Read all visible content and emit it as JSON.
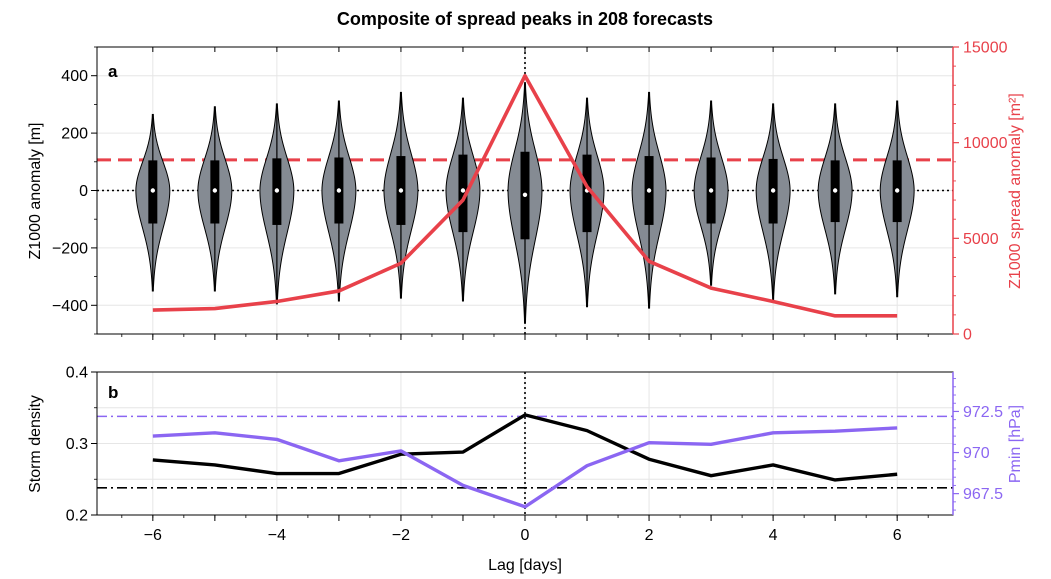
{
  "chart_data": [
    {
      "type": "violin+line",
      "panel": "a",
      "title": "Composite of spread peaks in 208 forecasts",
      "xlabel": "Lag [days]",
      "ylabel": "Z1000 anomaly [m]",
      "ylabel_right": "Z1000 spread anomaly [m²]",
      "xlim": [
        -6.9,
        6.9
      ],
      "ylim": [
        -500,
        500
      ],
      "ylim_right": [
        0,
        15000
      ],
      "xticks": [
        -6,
        -4,
        -2,
        0,
        2,
        4,
        6
      ],
      "xtick_labels": [
        "−6",
        "−4",
        "−2",
        "0",
        "2",
        "4",
        "6"
      ],
      "yticks": [
        -400,
        -200,
        0,
        200,
        400
      ],
      "ytick_labels": [
        "−400",
        "−200",
        "0",
        "200",
        "400"
      ],
      "yticks_right": [
        0,
        5000,
        10000,
        15000
      ],
      "ytick_labels_right": [
        "0",
        "5000",
        "10000",
        "15000"
      ],
      "grid": true,
      "violins": {
        "x": [
          -6,
          -5,
          -4,
          -3,
          -2,
          -1,
          0,
          1,
          2,
          3,
          4,
          5,
          6
        ],
        "max": [
          265,
          292,
          302,
          312,
          342,
          322,
          372,
          322,
          342,
          312,
          302,
          302,
          312
        ],
        "min": [
          -350,
          -350,
          -395,
          -385,
          -375,
          -385,
          -460,
          -405,
          -410,
          -330,
          -380,
          -360,
          -370
        ],
        "q75": [
          105,
          105,
          112,
          115,
          120,
          125,
          135,
          125,
          120,
          115,
          110,
          105,
          105
        ],
        "q25": [
          -115,
          -115,
          -120,
          -115,
          -120,
          -145,
          -170,
          -145,
          -120,
          -115,
          -115,
          -110,
          -110
        ],
        "median": [
          0,
          0,
          0,
          0,
          0,
          0,
          -15,
          0,
          0,
          0,
          0,
          0,
          0
        ],
        "color": "#858b93"
      },
      "series": [
        {
          "axis": "right",
          "x": [
            -6,
            -5,
            -4,
            -3,
            -2,
            -1,
            0,
            1,
            2,
            3,
            4,
            5,
            6
          ],
          "values": [
            1250,
            1330,
            1700,
            2250,
            3700,
            7000,
            13500,
            7700,
            3800,
            2400,
            1700,
            950,
            950
          ],
          "color": "#e8414a"
        }
      ],
      "hlines": [
        {
          "axis": "right",
          "value": 9100,
          "style": "dashed",
          "color": "#e8414a"
        },
        {
          "axis": "left",
          "value": 0,
          "style": "dotted",
          "color": "#000000"
        }
      ],
      "vlines": [
        {
          "value": 0,
          "style": "dotted",
          "color": "#000000"
        }
      ]
    },
    {
      "type": "line",
      "panel": "b",
      "xlabel": "Lag [days]",
      "ylabel": "Storm density",
      "ylabel_right": "Pmin [hPa]",
      "xlim": [
        -6.9,
        6.9
      ],
      "ylim": [
        0.2,
        0.4
      ],
      "ylim_right": [
        966.2,
        974.9
      ],
      "yticks": [
        0.2,
        0.3,
        0.4
      ],
      "ytick_labels": [
        "0.2",
        "0.3",
        "0.4"
      ],
      "yticks_right": [
        967.5,
        970,
        972.5
      ],
      "ytick_labels_right": [
        "967.5",
        "970",
        "972.5"
      ],
      "grid": true,
      "series": [
        {
          "axis": "left",
          "x": [
            -6,
            -5,
            -4,
            -3,
            -2,
            -1,
            0,
            1,
            2,
            3,
            4,
            5,
            6
          ],
          "values": [
            0.277,
            0.27,
            0.258,
            0.258,
            0.285,
            0.288,
            0.34,
            0.318,
            0.278,
            0.255,
            0.27,
            0.249,
            0.257
          ],
          "color": "#000000"
        },
        {
          "axis": "right",
          "x": [
            -6,
            -5,
            -4,
            -3,
            -2,
            -1,
            0,
            1,
            2,
            3,
            4,
            5,
            6
          ],
          "values": [
            971.0,
            971.2,
            970.8,
            969.5,
            970.1,
            968.0,
            966.7,
            969.2,
            970.6,
            970.5,
            971.2,
            971.3,
            971.5
          ],
          "color": "#8b66f2"
        }
      ],
      "hlines": [
        {
          "axis": "right",
          "value": 972.2,
          "style": "dashdot",
          "color": "#8b66f2"
        },
        {
          "axis": "left",
          "value": 0.238,
          "style": "dashdot",
          "color": "#000000"
        }
      ],
      "vlines": [
        {
          "value": 0,
          "style": "dotted",
          "color": "#000000"
        }
      ]
    }
  ],
  "panel_letters": [
    "a",
    "b"
  ]
}
